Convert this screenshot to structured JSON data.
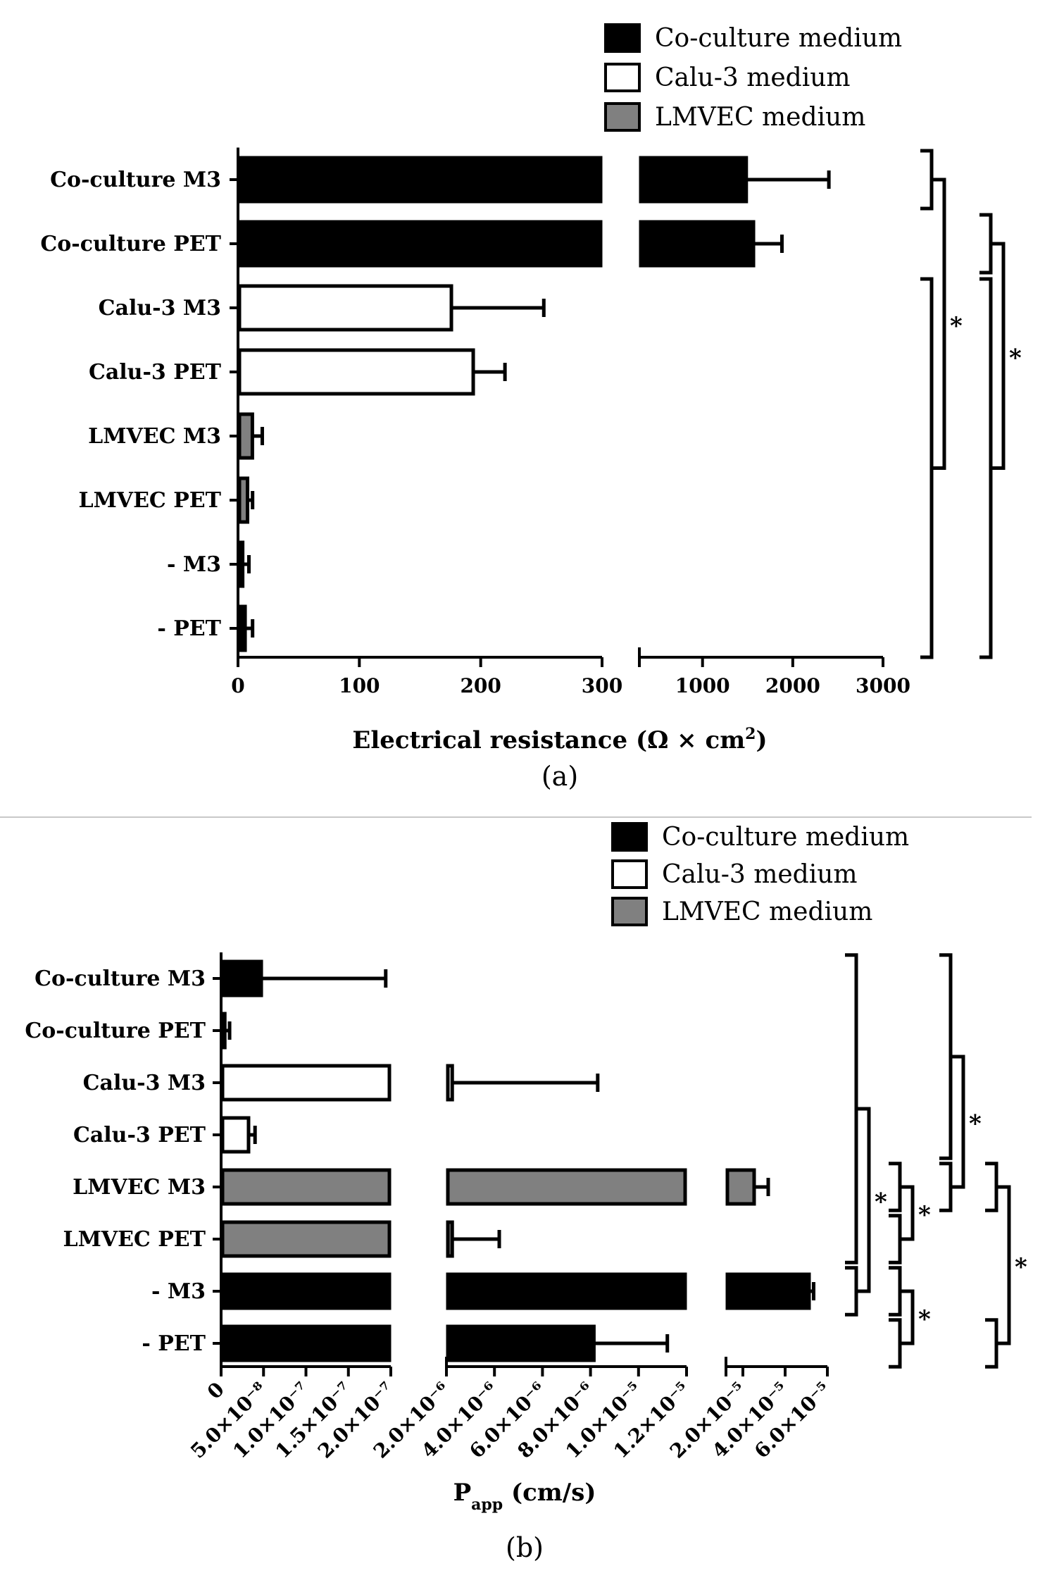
{
  "chart_data": [
    {
      "type": "bar",
      "orientation": "horizontal",
      "panel_label": "a",
      "xlabel": "Electrical resistance (Ω × cm²)",
      "xlabel_parts": {
        "main": "Electrical resistance (Ω × cm",
        "sup": "2",
        "end": ")"
      },
      "categories": [
        "Co-culture M3",
        "Co-culture PET",
        "Calu-3 M3",
        "Calu-3 PET",
        "LMVEC M3",
        "LMVEC PET",
        "- M3",
        "- PET"
      ],
      "series": [
        {
          "name": "Co-culture medium",
          "color": "#000000",
          "values": [
            1500,
            1580,
            null,
            null,
            null,
            null,
            5,
            7
          ],
          "errors": [
            900,
            300,
            null,
            null,
            null,
            null,
            4,
            5
          ]
        },
        {
          "name": "Calu-3 medium",
          "color": "#ffffff",
          "values": [
            null,
            null,
            177,
            195,
            null,
            null,
            null,
            null
          ],
          "errors": [
            null,
            null,
            75,
            25,
            null,
            null,
            null,
            null
          ]
        },
        {
          "name": "LMVEC medium",
          "color": "#808080",
          "values": [
            null,
            null,
            null,
            null,
            13,
            9,
            null,
            null
          ],
          "errors": [
            null,
            null,
            null,
            null,
            7,
            3,
            null,
            null
          ]
        }
      ],
      "value_series": [
        0,
        0,
        1,
        1,
        2,
        2,
        0,
        0
      ],
      "axis_segments": [
        {
          "range": [
            0,
            300
          ],
          "ticks": [
            "0",
            "100",
            "200",
            "300"
          ],
          "tick_values": [
            0,
            100,
            200,
            300
          ]
        },
        {
          "range": [
            300,
            3000
          ],
          "ticks": [
            "1000",
            "2000",
            "3000"
          ],
          "tick_values": [
            1000,
            2000,
            3000
          ]
        }
      ],
      "significance": [
        {
          "groups": [
            [
              "Co-culture M3"
            ],
            [
              "Calu-3 M3",
              "Calu-3 PET",
              "LMVEC M3",
              "LMVEC PET",
              "- M3",
              "- PET"
            ]
          ],
          "label": "*"
        },
        {
          "groups": [
            [
              "Co-culture PET"
            ],
            [
              "Calu-3 M3",
              "Calu-3 PET",
              "LMVEC M3",
              "LMVEC PET",
              "- M3",
              "- PET"
            ]
          ],
          "label": "*"
        }
      ]
    },
    {
      "type": "bar",
      "orientation": "horizontal",
      "panel_label": "b",
      "xlabel": "Papp (cm/s)",
      "xlabel_parts": {
        "main": "P",
        "sub": "app",
        "end": " (cm/s)"
      },
      "categories": [
        "Co-culture M3",
        "Co-culture PET",
        "Calu-3 M3",
        "Calu-3 PET",
        "LMVEC M3",
        "LMVEC PET",
        "- M3",
        "- PET"
      ],
      "series": [
        {
          "name": "Co-culture medium",
          "color": "#000000",
          "values": [
            4.9e-08,
            6e-09,
            null,
            null,
            null,
            null,
            5.2e-05,
            8.2e-06
          ],
          "errors": [
            1.45e-07,
            4e-09,
            null,
            null,
            null,
            null,
            1.5e-06,
            3e-06
          ]
        },
        {
          "name": "Calu-3 medium",
          "color": "#ffffff",
          "values": [
            null,
            null,
            2.3e-06,
            3.4e-08,
            null,
            null,
            null,
            null
          ],
          "errors": [
            null,
            null,
            6e-06,
            6e-09,
            null,
            null,
            null,
            null
          ]
        },
        {
          "name": "LMVEC medium",
          "color": "#808080",
          "values": [
            null,
            null,
            null,
            null,
            2.6e-05,
            2.3e-06,
            null,
            null
          ],
          "errors": [
            null,
            null,
            null,
            null,
            6e-06,
            1.9e-06,
            null,
            null
          ]
        }
      ],
      "value_series": [
        0,
        0,
        1,
        1,
        2,
        2,
        0,
        0
      ],
      "axis_segments": [
        {
          "range": [
            0,
            2e-07
          ],
          "ticks": [
            "0",
            "5.0×10⁻⁸",
            "1.0×10⁻⁷",
            "1.5×10⁻⁷",
            "2.0×10⁻⁷"
          ],
          "tick_values": [
            0,
            5e-08,
            1e-07,
            1.5e-07,
            2e-07
          ]
        },
        {
          "range": [
            2e-06,
            1.2e-05
          ],
          "ticks": [
            "2.0×10⁻⁶",
            "4.0×10⁻⁶",
            "6.0×10⁻⁶",
            "8.0×10⁻⁶",
            "1.0×10⁻⁵",
            "1.2×10⁻⁵"
          ],
          "tick_values": [
            2e-06,
            4e-06,
            6e-06,
            8e-06,
            1e-05,
            1.2e-05
          ]
        },
        {
          "range": [
            1.2e-05,
            6e-05
          ],
          "ticks": [
            "2.0×10⁻⁵",
            "4.0×10⁻⁵",
            "6.0×10⁻⁵"
          ],
          "tick_values": [
            2e-05,
            4e-05,
            6e-05
          ]
        }
      ],
      "significance": [
        {
          "groups": [
            [
              "Co-culture M3",
              "Co-culture PET",
              "Calu-3 M3",
              "Calu-3 PET",
              "LMVEC M3",
              "LMVEC PET"
            ],
            [
              "- M3"
            ]
          ],
          "label": "*"
        },
        {
          "groups": [
            [
              "LMVEC M3"
            ],
            [
              "LMVEC PET"
            ]
          ],
          "label": "*"
        },
        {
          "groups": [
            [
              "- M3"
            ],
            [
              "- PET"
            ]
          ],
          "label": "*"
        },
        {
          "groups": [
            [
              "Co-culture M3",
              "Co-culture PET",
              "Calu-3 M3",
              "Calu-3 PET"
            ],
            [
              "LMVEC M3"
            ]
          ],
          "label": "*"
        },
        {
          "groups": [
            [
              "LMVEC M3"
            ],
            [
              "- PET"
            ]
          ],
          "label": "*"
        }
      ]
    }
  ]
}
